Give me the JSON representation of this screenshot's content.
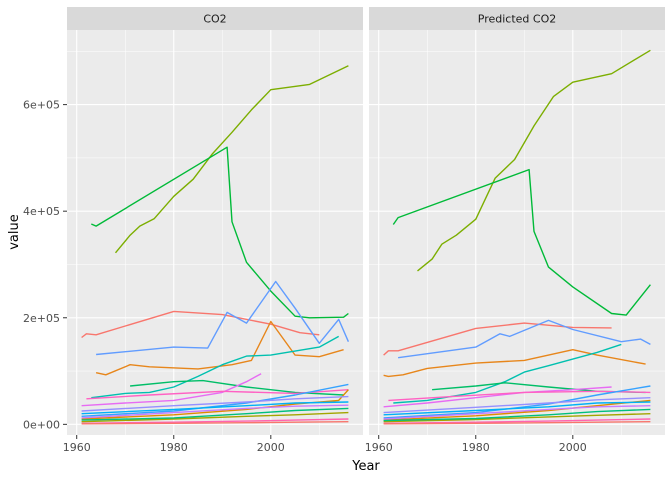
{
  "chart_data": {
    "type": "line",
    "facets": [
      {
        "label": "CO2"
      },
      {
        "label": "Predicted CO2"
      }
    ],
    "xlabel": "Year",
    "ylabel": "value",
    "xlim": [
      1958,
      2019
    ],
    "ylim": [
      -20000,
      740000
    ],
    "x_ticks": [
      1960,
      1980,
      2000
    ],
    "x_tick_labels": [
      "1960",
      "1980",
      "2000"
    ],
    "y_ticks": [
      0,
      200000,
      400000,
      600000
    ],
    "y_tick_labels": [
      "0e+00",
      "2e+05",
      "4e+05",
      "6e+05"
    ],
    "grid": true,
    "legend": "none",
    "series": [
      {
        "color": "#7CAE00",
        "values": [
          [
            [
              1968,
              322000
            ],
            [
              1971,
              355000
            ],
            [
              1973,
              372000
            ],
            [
              1976,
              386000
            ],
            [
              1980,
              428000
            ],
            [
              1984,
              460000
            ],
            [
              1988,
              508000
            ],
            [
              1992,
              548000
            ],
            [
              1996,
              590000
            ],
            [
              2000,
              628000
            ],
            [
              2008,
              638000
            ],
            [
              2016,
              673000
            ]
          ],
          [
            [
              1968,
              288000
            ],
            [
              1971,
              310000
            ],
            [
              1973,
              338000
            ],
            [
              1976,
              355000
            ],
            [
              1980,
              385000
            ],
            [
              1984,
              462000
            ],
            [
              1988,
              497000
            ],
            [
              1992,
              560000
            ],
            [
              1996,
              615000
            ],
            [
              2000,
              642000
            ],
            [
              2008,
              658000
            ],
            [
              2016,
              702000
            ]
          ]
        ]
      },
      {
        "color": "#00BA38",
        "values": [
          [
            [
              1963,
              376000
            ],
            [
              1964,
              372000
            ],
            [
              1991,
              520000
            ],
            [
              1992,
              380000
            ],
            [
              1995,
              304000
            ],
            [
              2000,
              250000
            ],
            [
              2005,
              203000
            ],
            [
              2008,
              200000
            ],
            [
              2015,
              201000
            ],
            [
              2016,
              208000
            ]
          ],
          [
            [
              1963,
              375000
            ],
            [
              1964,
              388000
            ],
            [
              1991,
              478000
            ],
            [
              1992,
              362000
            ],
            [
              1995,
              295000
            ],
            [
              2000,
              258000
            ],
            [
              2008,
              208000
            ],
            [
              2011,
              205000
            ],
            [
              2016,
              262000
            ]
          ]
        ]
      },
      {
        "color": "#F8766D",
        "values": [
          [
            [
              1961,
              163000
            ],
            [
              1962,
              170000
            ],
            [
              1964,
              168000
            ],
            [
              1980,
              212000
            ],
            [
              1990,
              206000
            ],
            [
              2000,
              188000
            ],
            [
              2006,
              172000
            ],
            [
              2010,
              168000
            ]
          ],
          [
            [
              1961,
              130000
            ],
            [
              1962,
              138000
            ],
            [
              1964,
              138000
            ],
            [
              1980,
              180000
            ],
            [
              1990,
              190000
            ],
            [
              2000,
              182000
            ],
            [
              2008,
              181000
            ]
          ]
        ]
      },
      {
        "color": "#619CFF",
        "values": [
          [
            [
              1964,
              131000
            ],
            [
              1980,
              145000
            ],
            [
              1987,
              143000
            ],
            [
              1991,
              210000
            ],
            [
              1995,
              190000
            ],
            [
              2001,
              268000
            ],
            [
              2005,
              218000
            ],
            [
              2010,
              152000
            ],
            [
              2014,
              197000
            ],
            [
              2016,
              155000
            ]
          ],
          [
            [
              1964,
              125000
            ],
            [
              1980,
              145000
            ],
            [
              1983,
              160000
            ],
            [
              1985,
              170000
            ],
            [
              1987,
              165000
            ],
            [
              1995,
              195000
            ],
            [
              2000,
              178000
            ],
            [
              2010,
              155000
            ],
            [
              2014,
              160000
            ],
            [
              2016,
              150000
            ]
          ]
        ]
      },
      {
        "color": "#E7861B",
        "values": [
          [
            [
              1964,
              97000
            ],
            [
              1966,
              93000
            ],
            [
              1971,
              112000
            ],
            [
              1975,
              108000
            ],
            [
              1985,
              104000
            ],
            [
              1992,
              112000
            ],
            [
              1996,
              120000
            ],
            [
              2000,
              193000
            ],
            [
              2005,
              130000
            ],
            [
              2010,
              127000
            ],
            [
              2015,
              140000
            ]
          ],
          [
            [
              1961,
              92000
            ],
            [
              1962,
              90000
            ],
            [
              1965,
              93000
            ],
            [
              1970,
              105000
            ],
            [
              1980,
              115000
            ],
            [
              1990,
              120000
            ],
            [
              2000,
              140000
            ],
            [
              2005,
              130000
            ],
            [
              2015,
              113000
            ]
          ]
        ]
      },
      {
        "color": "#00C0AF",
        "values": [
          [
            [
              1963,
              50000
            ],
            [
              1970,
              58000
            ],
            [
              1975,
              60000
            ],
            [
              1980,
              70000
            ],
            [
              1985,
              90000
            ],
            [
              1990,
              112000
            ],
            [
              1995,
              128000
            ],
            [
              2000,
              130000
            ],
            [
              2010,
              145000
            ],
            [
              2014,
              165000
            ]
          ],
          [
            [
              1963,
              40000
            ],
            [
              1970,
              45000
            ],
            [
              1980,
              60000
            ],
            [
              1986,
              80000
            ],
            [
              1990,
              98000
            ],
            [
              1995,
              110000
            ],
            [
              2005,
              135000
            ],
            [
              2010,
              150000
            ]
          ]
        ]
      },
      {
        "color": "#00BE67",
        "values": [
          [
            [
              1971,
              72000
            ],
            [
              1980,
              80000
            ],
            [
              1986,
              82000
            ],
            [
              1995,
              70000
            ],
            [
              2005,
              60000
            ],
            [
              2015,
              55000
            ]
          ],
          [
            [
              1971,
              65000
            ],
            [
              1980,
              72000
            ],
            [
              1986,
              78000
            ],
            [
              1995,
              70000
            ],
            [
              2005,
              62000
            ],
            [
              2015,
              60000
            ]
          ]
        ]
      },
      {
        "color": "#E76BF3",
        "values": [
          [
            [
              1961,
              35000
            ],
            [
              1970,
              40000
            ],
            [
              1980,
              45000
            ],
            [
              1990,
              60000
            ],
            [
              1995,
              80000
            ],
            [
              1998,
              95000
            ]
          ],
          [
            [
              1961,
              33000
            ],
            [
              1970,
              40000
            ],
            [
              1980,
              50000
            ],
            [
              1990,
              60000
            ],
            [
              2000,
              65000
            ],
            [
              2008,
              70000
            ]
          ]
        ]
      },
      {
        "color": "#FF61C3",
        "values": [
          [
            [
              1962,
              48000
            ],
            [
              1975,
              55000
            ],
            [
              1990,
              62000
            ],
            [
              2005,
              58000
            ],
            [
              2016,
              65000
            ]
          ],
          [
            [
              1962,
              45000
            ],
            [
              1975,
              52000
            ],
            [
              1990,
              60000
            ],
            [
              2005,
              62000
            ],
            [
              2016,
              60000
            ]
          ]
        ]
      },
      {
        "color": "#35A2FF",
        "values": [
          [
            [
              1961,
              15000
            ],
            [
              1980,
              25000
            ],
            [
              1995,
              40000
            ],
            [
              2005,
              55000
            ],
            [
              2016,
              75000
            ]
          ],
          [
            [
              1961,
              12000
            ],
            [
              1980,
              22000
            ],
            [
              1995,
              38000
            ],
            [
              2005,
              55000
            ],
            [
              2016,
              72000
            ]
          ]
        ]
      },
      {
        "color": "#DE8C00",
        "values": [
          [
            [
              1961,
              10000
            ],
            [
              1980,
              18000
            ],
            [
              1995,
              28000
            ],
            [
              2005,
              38000
            ],
            [
              2014,
              45000
            ],
            [
              2016,
              65000
            ]
          ],
          [
            [
              1961,
              8000
            ],
            [
              1980,
              16000
            ],
            [
              1995,
              26000
            ],
            [
              2005,
              35000
            ],
            [
              2016,
              45000
            ]
          ]
        ]
      },
      {
        "color": "#9590FF",
        "values": [
          [
            [
              1961,
              25000
            ],
            [
              1980,
              35000
            ],
            [
              1995,
              42000
            ],
            [
              2005,
              48000
            ],
            [
              2016,
              52000
            ]
          ],
          [
            [
              1961,
              22000
            ],
            [
              1980,
              32000
            ],
            [
              1995,
              40000
            ],
            [
              2005,
              46000
            ],
            [
              2016,
              50000
            ]
          ]
        ]
      },
      {
        "color": "#00B0F6",
        "values": [
          [
            [
              1961,
              20000
            ],
            [
              1980,
              28000
            ],
            [
              1995,
              35000
            ],
            [
              2005,
              40000
            ],
            [
              2016,
              42000
            ]
          ],
          [
            [
              1961,
              18000
            ],
            [
              1980,
              26000
            ],
            [
              1995,
              33000
            ],
            [
              2005,
              40000
            ],
            [
              2016,
              42000
            ]
          ]
        ]
      },
      {
        "color": "#A3A500",
        "values": [
          [
            [
              1961,
              5000
            ],
            [
              1980,
              10000
            ],
            [
              1995,
              15000
            ],
            [
              2005,
              18000
            ],
            [
              2016,
              22000
            ]
          ],
          [
            [
              1961,
              5000
            ],
            [
              1980,
              9000
            ],
            [
              1995,
              14000
            ],
            [
              2005,
              17000
            ],
            [
              2016,
              20000
            ]
          ]
        ]
      },
      {
        "color": "#FF64B0",
        "values": [
          [
            [
              1961,
              2000
            ],
            [
              1980,
              4000
            ],
            [
              1995,
              6000
            ],
            [
              2005,
              8000
            ],
            [
              2016,
              10000
            ]
          ],
          [
            [
              1961,
              2000
            ],
            [
              1980,
              4000
            ],
            [
              1995,
              6000
            ],
            [
              2005,
              8000
            ],
            [
              2016,
              10000
            ]
          ]
        ]
      },
      {
        "color": "#00BF7D",
        "values": [
          [
            [
              1961,
              8000
            ],
            [
              1980,
              12000
            ],
            [
              1995,
              20000
            ],
            [
              2005,
              26000
            ],
            [
              2016,
              30000
            ]
          ],
          [
            [
              1961,
              7000
            ],
            [
              1980,
              11000
            ],
            [
              1995,
              18000
            ],
            [
              2005,
              24000
            ],
            [
              2016,
              28000
            ]
          ]
        ]
      },
      {
        "color": "#C77CFF",
        "values": [
          [
            [
              1961,
              12000
            ],
            [
              1980,
              22000
            ],
            [
              1995,
              30000
            ],
            [
              2005,
              34000
            ],
            [
              2016,
              36000
            ]
          ],
          [
            [
              1961,
              10000
            ],
            [
              1980,
              20000
            ],
            [
              1995,
              28000
            ],
            [
              2005,
              33000
            ],
            [
              2016,
              35000
            ]
          ]
        ]
      },
      {
        "color": "#F8766D",
        "values": [
          [
            [
              1961,
              1000
            ],
            [
              1980,
              2000
            ],
            [
              1995,
              3000
            ],
            [
              2005,
              4000
            ],
            [
              2016,
              5000
            ]
          ],
          [
            [
              1961,
              1000
            ],
            [
              1980,
              2000
            ],
            [
              1995,
              3000
            ],
            [
              2005,
              4000
            ],
            [
              2016,
              5000
            ]
          ]
        ]
      }
    ]
  }
}
